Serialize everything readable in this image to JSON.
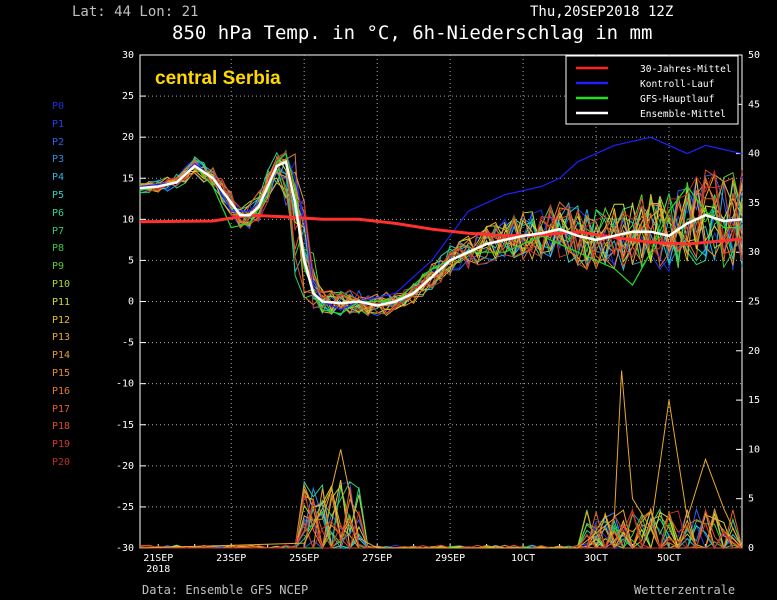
{
  "header": {
    "latlon": "Lat: 44 Lon: 21",
    "datetime": "Thu,20SEP2018 12Z",
    "title": "850 hPa Temp. in °C, 6h-Niederschlag in mm"
  },
  "footer": {
    "source": "Data: Ensemble GFS NCEP",
    "brand": "Wetterzentrale"
  },
  "members": [
    {
      "name": "P0",
      "color": "#1a2de0"
    },
    {
      "name": "P1",
      "color": "#2440e8"
    },
    {
      "name": "P2",
      "color": "#2c60ee"
    },
    {
      "name": "P3",
      "color": "#2c8ae8"
    },
    {
      "name": "P4",
      "color": "#2cb6e0"
    },
    {
      "name": "P5",
      "color": "#2cd0c4"
    },
    {
      "name": "P6",
      "color": "#28d49a"
    },
    {
      "name": "P7",
      "color": "#28d070"
    },
    {
      "name": "P8",
      "color": "#30cc40"
    },
    {
      "name": "P9",
      "color": "#5ccc2c"
    },
    {
      "name": "P10",
      "color": "#a8d42c"
    },
    {
      "name": "P11",
      "color": "#d8d82c"
    },
    {
      "name": "P12",
      "color": "#e0c02c"
    },
    {
      "name": "P13",
      "color": "#e8a82c"
    },
    {
      "name": "P14",
      "color": "#e89c2c"
    },
    {
      "name": "P15",
      "color": "#e88c2c"
    },
    {
      "name": "P16",
      "color": "#e8782c"
    },
    {
      "name": "P17",
      "color": "#e0602c"
    },
    {
      "name": "P18",
      "color": "#d84c2c"
    },
    {
      "name": "P19",
      "color": "#cc3828"
    },
    {
      "name": "P20",
      "color": "#c02c28"
    }
  ],
  "chart_data": {
    "type": "line",
    "region_label": "central Serbia",
    "x_tick_labels": [
      "21SEP\n2018",
      "23SEP",
      "25SEP",
      "27SEP",
      "29SEP",
      "1OCT",
      "3OCT",
      "5OCT"
    ],
    "x_days": [
      0,
      16.5
    ],
    "ylim_left": [
      -30,
      30
    ],
    "y_ticks_left": [
      30,
      25,
      20,
      15,
      10,
      5,
      0,
      -5,
      -10,
      -15,
      -20,
      -25,
      -30
    ],
    "ylim_right": [
      0,
      50
    ],
    "y_ticks_right": [
      50,
      45,
      40,
      35,
      30,
      25,
      20,
      15,
      10,
      5,
      0
    ],
    "grid": true,
    "legend_position": "top-right",
    "legend": [
      {
        "label": "30-Jahres-Mittel",
        "color": "#ff2020"
      },
      {
        "label": "Kontroll-Lauf",
        "color": "#2020ff"
      },
      {
        "label": "GFS-Hauptlauf",
        "color": "#20e020"
      },
      {
        "label": "Ensemble-Mittel",
        "color": "#ffffff"
      }
    ],
    "series": [
      {
        "name": "30-Jahres-Mittel",
        "axis": "left",
        "x": [
          0,
          2,
          3,
          4,
          5,
          6,
          7,
          8,
          9,
          10,
          11,
          12,
          13,
          14,
          15,
          16.5
        ],
        "y": [
          9.7,
          9.8,
          10.5,
          10.3,
          10,
          10,
          9.5,
          8.8,
          8.3,
          8,
          8.1,
          8.5,
          7.8,
          7.2,
          7,
          7.6
        ]
      },
      {
        "name": "Ensemble-Mittel",
        "axis": "left",
        "x": [
          0,
          0.5,
          1,
          1.5,
          2,
          2.5,
          2.75,
          3,
          3.25,
          3.5,
          3.75,
          4,
          4.25,
          4.5,
          4.75,
          5,
          5.5,
          6,
          6.5,
          7,
          7.5,
          8,
          8.5,
          9,
          9.5,
          10,
          10.5,
          11,
          11.5,
          12,
          12.5,
          13,
          13.5,
          14,
          14.5,
          15,
          15.5,
          16,
          16.5
        ],
        "y": [
          13.8,
          14,
          14.5,
          16.5,
          15,
          12,
          10.5,
          10.5,
          11.5,
          14,
          16.5,
          17,
          12,
          5,
          1,
          0,
          -0.2,
          0,
          -0.5,
          0,
          1,
          3,
          5,
          6,
          7,
          7.5,
          8,
          8.3,
          8.8,
          8,
          7.5,
          8,
          8.5,
          8.5,
          8,
          9.5,
          10.5,
          9.8,
          10
        ]
      },
      {
        "name": "Kontroll-Lauf",
        "axis": "left",
        "x": [
          0,
          1,
          1.5,
          2,
          2.5,
          3,
          3.5,
          3.75,
          4,
          4.25,
          4.5,
          4.75,
          5,
          5.5,
          6,
          7,
          8,
          8.5,
          9,
          10,
          11,
          11.5,
          12,
          12.5,
          13,
          13.5,
          14,
          14.5,
          15,
          15.5,
          16,
          16.5
        ],
        "y": [
          14,
          14.5,
          16.8,
          15,
          11,
          11,
          13,
          17,
          18,
          15,
          10,
          2,
          0,
          -1,
          0,
          1,
          5,
          8,
          11,
          13,
          14,
          15,
          17,
          18,
          19,
          19.5,
          20,
          19,
          18,
          19,
          18.5,
          18
        ]
      },
      {
        "name": "GFS-Hauptlauf",
        "axis": "left",
        "x": [
          0,
          1,
          1.5,
          2,
          2.5,
          3,
          3.5,
          3.75,
          4,
          4.25,
          4.5,
          5,
          5.5,
          6,
          7,
          8,
          9,
          10,
          11,
          12,
          13,
          13.5,
          14,
          14.5,
          15,
          15.5,
          16,
          16.5
        ],
        "y": [
          13.5,
          14.5,
          16.5,
          14,
          9,
          9.5,
          13,
          17,
          18,
          14,
          4,
          -1,
          -1.5,
          0,
          0,
          4,
          6,
          6,
          8,
          6,
          4,
          2,
          6,
          11,
          14,
          11,
          9,
          9
        ]
      },
      {
        "name": "Niederschlag Spitzen",
        "axis": "right",
        "x": [
          0,
          4.5,
          5,
          5.25,
          5.5,
          6,
          6.5,
          8,
          10,
          12,
          13,
          13.2,
          13.5,
          14,
          14.5,
          15,
          15.5,
          16,
          16.5
        ],
        "y": [
          0,
          0.5,
          4,
          6,
          10,
          1,
          0,
          0,
          0,
          0,
          3,
          18,
          5,
          2,
          15,
          3,
          9,
          4,
          0
        ]
      }
    ]
  }
}
